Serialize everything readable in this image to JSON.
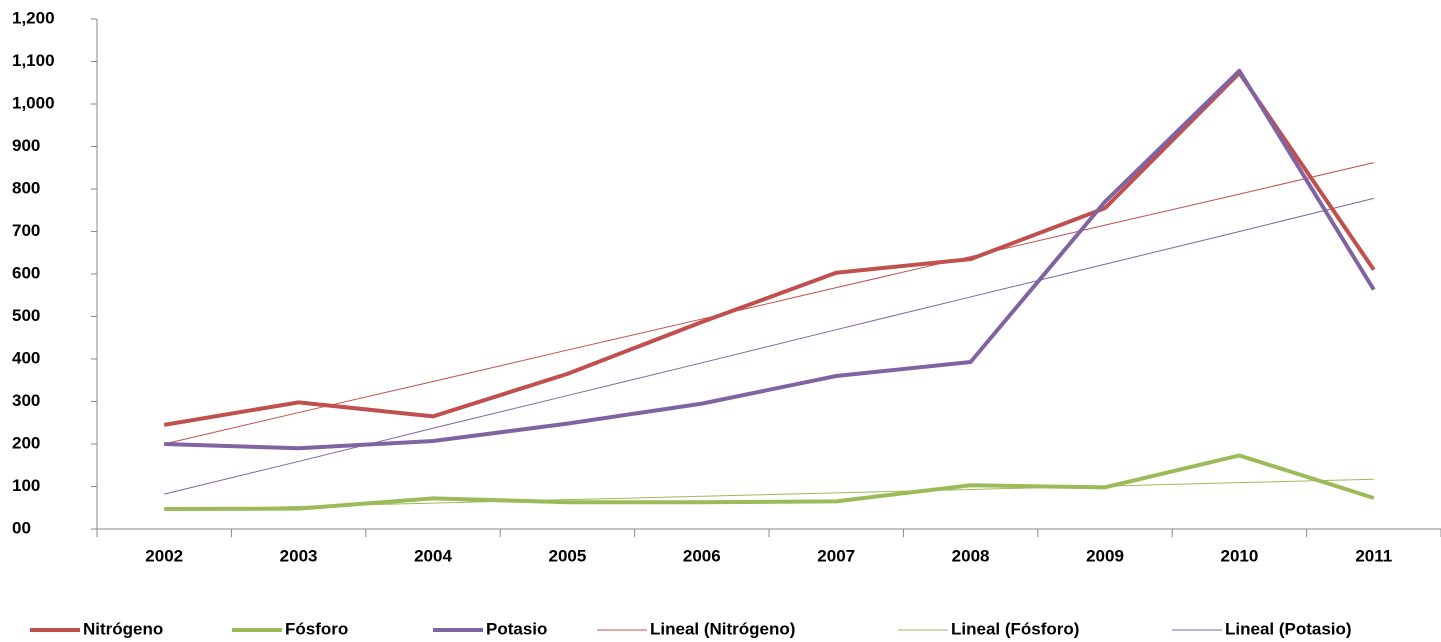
{
  "chart_data": {
    "type": "line",
    "categories": [
      "2002",
      "2003",
      "2004",
      "2005",
      "2006",
      "2007",
      "2008",
      "2009",
      "2010",
      "2011"
    ],
    "series": [
      {
        "name": "Nitrógeno",
        "color": "#c0504d",
        "width": 4,
        "values": [
          245,
          298,
          265,
          365,
          487,
          603,
          635,
          755,
          1073,
          610
        ]
      },
      {
        "name": "Fósforo",
        "color": "#9bbb59",
        "width": 4,
        "values": [
          47,
          48,
          72,
          63,
          63,
          65,
          103,
          98,
          173,
          73
        ]
      },
      {
        "name": "Potasio",
        "color": "#8064a2",
        "width": 4,
        "values": [
          200,
          190,
          207,
          248,
          295,
          360,
          393,
          770,
          1078,
          563
        ]
      },
      {
        "name": "Lineal (Nitrógeno)",
        "color": "#c0504d",
        "width": 1,
        "values": [
          200,
          274,
          347,
          421,
          494,
          568,
          641,
          715,
          788,
          862
        ]
      },
      {
        "name": "Lineal (Fósforo)",
        "color": "#9bbb59",
        "width": 1,
        "values": [
          45,
          53,
          61,
          69,
          77,
          85,
          93,
          101,
          109,
          117
        ]
      },
      {
        "name": "Lineal (Potasio)",
        "color": "#8064a2",
        "width": 1,
        "values": [
          82,
          159,
          237,
          314,
          391,
          469,
          546,
          623,
          700,
          778
        ]
      }
    ],
    "ylim": [
      0,
      1200
    ],
    "yticks": [
      {
        "value": 0,
        "label": "00"
      },
      100,
      200,
      300,
      400,
      500,
      600,
      700,
      800,
      900,
      {
        "value": 1000,
        "label": "1,000"
      },
      {
        "value": 1100,
        "label": "1,100"
      },
      {
        "value": 1200,
        "label": "1,200"
      }
    ],
    "grid": false,
    "legend": "bottom"
  }
}
